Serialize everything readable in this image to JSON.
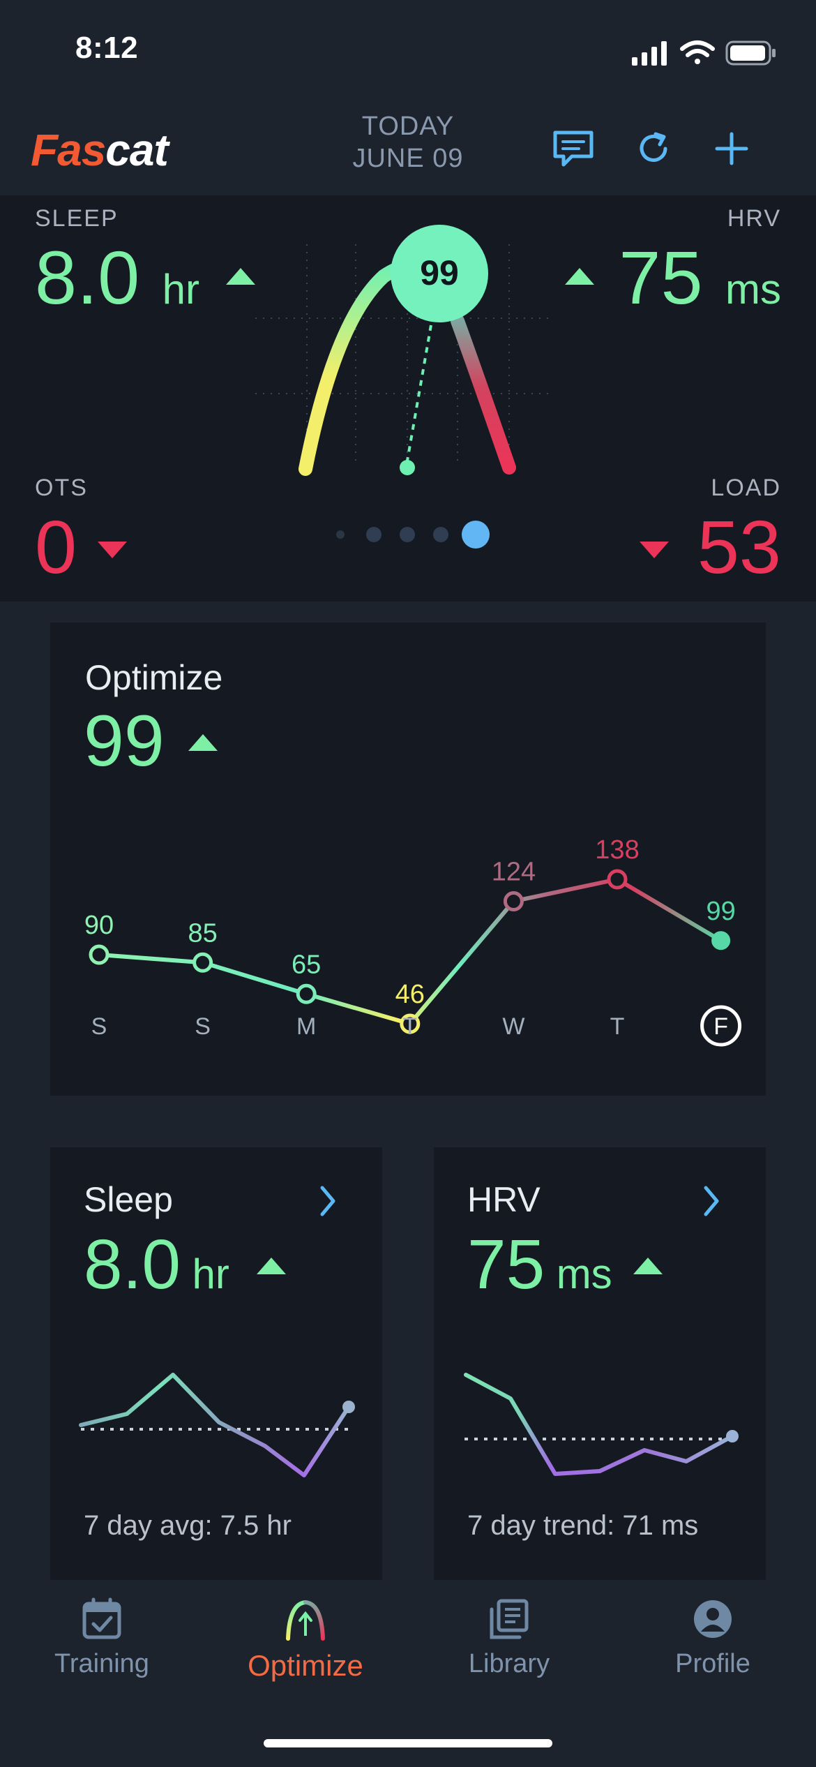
{
  "status_bar": {
    "time": "8:12"
  },
  "header": {
    "logo_part1": "Fas",
    "logo_part2": "cat",
    "date_line1": "TODAY",
    "date_line2": "JUNE 09",
    "icons": [
      "message-icon",
      "refresh-icon",
      "add-icon"
    ]
  },
  "hero": {
    "sleep": {
      "label": "SLEEP",
      "value": "8.0",
      "unit": "hr",
      "trend": "up"
    },
    "hrv": {
      "label": "HRV",
      "value": "75",
      "unit": "ms",
      "trend": "up"
    },
    "ots": {
      "label": "OTS",
      "value": "0",
      "trend": "down"
    },
    "load": {
      "label": "LOAD",
      "value": "53",
      "trend": "down"
    },
    "gauge_score": "99",
    "page_dots": 5,
    "active_dot": 5
  },
  "optimize_card": {
    "title": "Optimize",
    "value": "99",
    "trend": "up",
    "chart_data": {
      "type": "line",
      "categories": [
        "S",
        "S",
        "M",
        "T",
        "W",
        "T",
        "F"
      ],
      "values": [
        90,
        85,
        65,
        46,
        124,
        138,
        99
      ],
      "highlighted_category_index": 6
    }
  },
  "sleep_card": {
    "title": "Sleep",
    "value": "8.0",
    "unit": "hr",
    "trend": "up",
    "footer": "7 day avg: 7.5 hr"
  },
  "hrv_card": {
    "title": "HRV",
    "value": "75",
    "unit": "ms",
    "trend": "up",
    "footer": "7 day trend: 71 ms"
  },
  "tab_bar": {
    "tabs": [
      {
        "label": "Training",
        "icon": "calendar-check-icon"
      },
      {
        "label": "Optimize",
        "icon": "optimize-arch-icon",
        "active": true
      },
      {
        "label": "Library",
        "icon": "library-icon"
      },
      {
        "label": "Profile",
        "icon": "profile-icon"
      }
    ]
  },
  "colors": {
    "green": "#7ef0a6",
    "red": "#ec3458",
    "yellow": "#f4ef6a",
    "accent_blue": "#5ab8f5",
    "brand_orange": "#f15a33"
  }
}
